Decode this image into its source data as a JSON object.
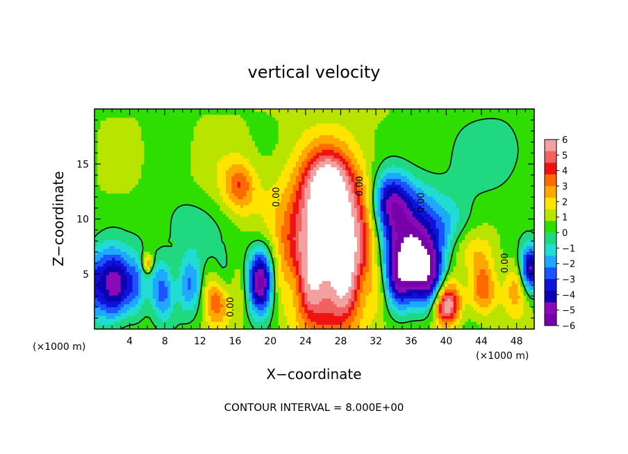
{
  "chart_data": {
    "type": "heatmap",
    "title": "vertical velocity",
    "xlabel": "X−coordinate",
    "ylabel": "Z−coordinate",
    "x_unit_left": "(×1000 m)",
    "x_unit_right": "(×1000 m)",
    "footer": "CONTOUR INTERVAL = 8.000E+00",
    "xlim": [
      0,
      50
    ],
    "ylim": [
      0,
      20
    ],
    "x_ticks": [
      4,
      8,
      12,
      16,
      20,
      24,
      28,
      32,
      36,
      40,
      44,
      48
    ],
    "y_ticks": [
      5,
      10,
      15
    ],
    "contour_labels": [
      {
        "text": "0.00",
        "x": 15.8,
        "y": 2.0
      },
      {
        "text": "0.00",
        "x": 21.0,
        "y": 12.0
      },
      {
        "text": "0.00",
        "x": 30.5,
        "y": 13.0
      },
      {
        "text": "0.00",
        "x": 37.5,
        "y": 11.5
      },
      {
        "text": "0.00",
        "x": 47.0,
        "y": 6.0
      }
    ],
    "colorbar": {
      "ticks": [
        "6",
        "5",
        "4",
        "3",
        "2",
        "1",
        "0",
        "−1",
        "−2",
        "−3",
        "−4",
        "−5",
        "−6"
      ],
      "colors": [
        "#f3a0a0",
        "#f06262",
        "#ee1212",
        "#ff6a00",
        "#ffa800",
        "#ffe400",
        "#b8e400",
        "#2ede00",
        "#20d880",
        "#20dcd2",
        "#1ea8ff",
        "#1b54ff",
        "#1010d8",
        "#0c00b0",
        "#8a0ab8",
        "#7800aa"
      ],
      "vmin": -6,
      "vmax": 6
    },
    "features": [
      {
        "x": 27,
        "y": 7.5,
        "sx": 3.5,
        "sy": 5.0,
        "v": 8
      },
      {
        "x": 26.5,
        "y": 13,
        "sx": 1.6,
        "sy": 2.0,
        "v": 4
      },
      {
        "x": 35.5,
        "y": 8.5,
        "sx": 2.6,
        "sy": 3.5,
        "v": -5
      },
      {
        "x": 36.5,
        "y": 5.0,
        "sx": 2.4,
        "sy": 2.2,
        "v": -6
      },
      {
        "x": 33.5,
        "y": 11.5,
        "sx": 1.5,
        "sy": 2.0,
        "v": -4
      },
      {
        "x": 19,
        "y": 4.5,
        "sx": 1.2,
        "sy": 2.2,
        "v": -6
      },
      {
        "x": 1.5,
        "y": 4.0,
        "sx": 1.8,
        "sy": 2.3,
        "v": -6
      },
      {
        "x": 4.8,
        "y": 4.0,
        "sx": 0.8,
        "sy": 2.0,
        "v": -3
      },
      {
        "x": 8.0,
        "y": 3.5,
        "sx": 0.9,
        "sy": 2.0,
        "v": -3
      },
      {
        "x": 11.0,
        "y": 4.0,
        "sx": 1.5,
        "sy": 2.0,
        "v": -2
      },
      {
        "x": 40.0,
        "y": 2.0,
        "sx": 1.0,
        "sy": 1.2,
        "v": 5
      },
      {
        "x": 44.0,
        "y": 3.5,
        "sx": 4.0,
        "sy": 1.6,
        "v": 2
      },
      {
        "x": 14.0,
        "y": 2.5,
        "sx": 1.0,
        "sy": 1.5,
        "v": 3
      },
      {
        "x": 16.5,
        "y": 13.0,
        "sx": 1.2,
        "sy": 1.5,
        "v": 2.5
      },
      {
        "x": 14.5,
        "y": 12.0,
        "sx": 4.0,
        "sy": 3.0,
        "v": 0.7
      },
      {
        "x": 11.0,
        "y": 9.5,
        "sx": 3.0,
        "sy": 2.5,
        "v": -1.5
      },
      {
        "x": 46.0,
        "y": 16.0,
        "sx": 4.0,
        "sy": 3.0,
        "v": -1.2
      },
      {
        "x": 40.5,
        "y": 9.5,
        "sx": 2.0,
        "sy": 2.0,
        "v": -1.5
      },
      {
        "x": 42.5,
        "y": 7.0,
        "sx": 2.0,
        "sy": 1.5,
        "v": 1.5
      },
      {
        "x": 6.0,
        "y": 6.0,
        "sx": 0.4,
        "sy": 0.6,
        "v": 3
      },
      {
        "x": 49.5,
        "y": 5.5,
        "sx": 0.8,
        "sy": 1.5,
        "v": -5
      }
    ]
  }
}
